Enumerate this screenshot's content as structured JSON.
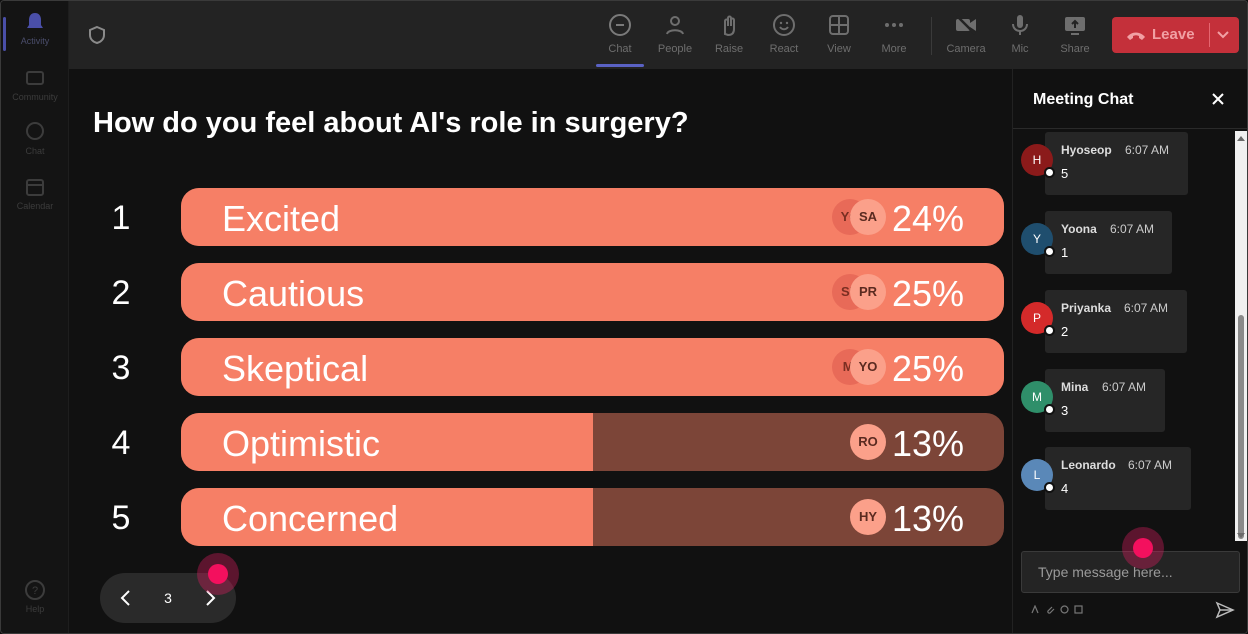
{
  "rail": {
    "items": [
      {
        "label": "Activity",
        "icon": "bell-icon"
      },
      {
        "label": "Community",
        "icon": "community-icon"
      },
      {
        "label": "Chat",
        "icon": "chat-icon"
      },
      {
        "label": "Calendar",
        "icon": "calendar-icon"
      }
    ],
    "help_label": "Help"
  },
  "toolbar": {
    "chat": "Chat",
    "people": "People",
    "raise": "Raise",
    "react": "React",
    "view": "View",
    "more": "More",
    "camera": "Camera",
    "mic": "Mic",
    "share": "Share",
    "leave": "Leave"
  },
  "poll": {
    "question": "How do you feel about AI's role in surgery?",
    "options": [
      {
        "num": "1",
        "label": "Excited",
        "pct": "24%",
        "value": 24,
        "fill": 1.0,
        "avatars": [
          "YO",
          "SA"
        ]
      },
      {
        "num": "2",
        "label": "Cautious",
        "pct": "25%",
        "value": 25,
        "fill": 1.0,
        "avatars": [
          "SU",
          "PR"
        ]
      },
      {
        "num": "3",
        "label": "Skeptical",
        "pct": "25%",
        "value": 25,
        "fill": 1.0,
        "avatars": [
          "MI",
          "YO"
        ]
      },
      {
        "num": "4",
        "label": "Optimistic",
        "pct": "13%",
        "value": 13,
        "fill": 0.5,
        "avatars": [
          "RO"
        ]
      },
      {
        "num": "5",
        "label": "Concerned",
        "pct": "13%",
        "value": 13,
        "fill": 0.5,
        "avatars": [
          "HY"
        ]
      }
    ]
  },
  "pager": {
    "page": "3"
  },
  "chat": {
    "title": "Meeting Chat",
    "messages": [
      {
        "initial": "H",
        "name": "Hyoseop",
        "time": "6:07 AM",
        "text": "5",
        "color": "#8b1a1a"
      },
      {
        "initial": "Y",
        "name": "Yoona",
        "time": "6:07 AM",
        "text": "1",
        "color": "#1f4e6e"
      },
      {
        "initial": "P",
        "name": "Priyanka",
        "time": "6:07 AM",
        "text": "2",
        "color": "#d42a2a"
      },
      {
        "initial": "M",
        "name": "Mina",
        "time": "6:07 AM",
        "text": "3",
        "color": "#2f8f6a"
      },
      {
        "initial": "L",
        "name": "Leonardo",
        "time": "6:07 AM",
        "text": "4",
        "color": "#5a88b8"
      }
    ],
    "input_placeholder": "Type message here..."
  },
  "colors": {
    "bar_fill": "#f67f66",
    "bar_track": "#7c4538",
    "leave": "#c4303a",
    "pointer": "#f3105e"
  }
}
